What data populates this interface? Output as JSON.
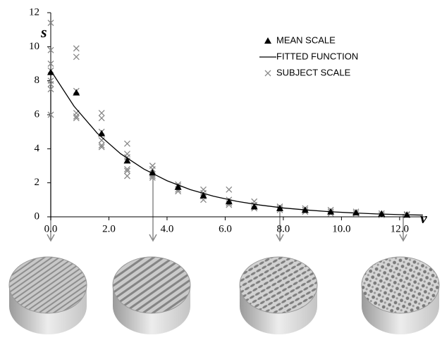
{
  "chart_data": {
    "type": "scatter",
    "x_label": "v",
    "y_label": "s",
    "xlim": [
      0,
      12.9
    ],
    "ylim": [
      0,
      12
    ],
    "xticks": [
      {
        "value": 0,
        "label": "0.0"
      },
      {
        "value": 2,
        "label": "2.0"
      },
      {
        "value": 4,
        "label": "4.0"
      },
      {
        "value": 6,
        "label": "6.0"
      },
      {
        "value": 8,
        "label": "8.0"
      },
      {
        "value": 10,
        "label": "10.0"
      },
      {
        "value": 12,
        "label": "12.0"
      }
    ],
    "yticks": [
      0,
      2,
      4,
      6,
      8,
      10,
      12
    ],
    "grid": false,
    "legend": "top right",
    "series": [
      {
        "name": "MEAN SCALE",
        "type": "scatter",
        "marker": "triangle",
        "color": "#000000",
        "x": [
          0,
          0.88,
          1.75,
          2.63,
          3.5,
          4.38,
          5.25,
          6.13,
          7.0,
          7.88,
          8.75,
          9.63,
          10.5,
          11.38,
          12.25
        ],
        "values": [
          8.5,
          7.3,
          4.9,
          3.3,
          2.6,
          1.75,
          1.25,
          0.9,
          0.6,
          0.5,
          0.4,
          0.3,
          0.25,
          0.18,
          0.12
        ]
      },
      {
        "name": "FITTED FUNCTION",
        "type": "line",
        "color": "#000000",
        "x": [
          0,
          0.8,
          1.6,
          2.4,
          3.2,
          4.0,
          4.8,
          5.6,
          6.4,
          7.2,
          8.0,
          8.8,
          9.6,
          10.4,
          11.2,
          12.0,
          12.8
        ],
        "values": [
          8.6,
          6.5,
          4.91,
          3.71,
          2.81,
          2.12,
          1.6,
          1.21,
          0.91,
          0.69,
          0.52,
          0.4,
          0.3,
          0.23,
          0.17,
          0.13,
          0.1
        ]
      },
      {
        "name": "SUBJECT SCALE",
        "type": "scatter",
        "marker": "x",
        "color": "#888888",
        "x": [
          0,
          0,
          0,
          0,
          0,
          0,
          0,
          0,
          0.88,
          0.88,
          0.88,
          0.88,
          0.88,
          0.88,
          1.75,
          1.75,
          1.75,
          1.75,
          1.75,
          1.75,
          2.63,
          2.63,
          2.63,
          2.63,
          2.63,
          2.63,
          2.63,
          3.5,
          3.5,
          3.5,
          3.5,
          3.5,
          4.38,
          4.38,
          4.38,
          4.38,
          5.25,
          5.25,
          5.25,
          5.25,
          6.13,
          6.13,
          6.13,
          6.13,
          7.0,
          7.0,
          7.0,
          7.88,
          7.88,
          7.88,
          8.75,
          8.75,
          8.75,
          9.63,
          9.63,
          9.63,
          10.5,
          10.5,
          11.38,
          11.38,
          12.25,
          12.25
        ],
        "values": [
          11.4,
          9.8,
          9.0,
          8.6,
          8.0,
          7.8,
          7.5,
          6.0,
          9.9,
          9.4,
          7.4,
          6.1,
          5.9,
          5.8,
          6.1,
          5.8,
          5.0,
          4.5,
          4.2,
          4.1,
          4.3,
          3.7,
          3.5,
          3.3,
          2.8,
          2.7,
          2.4,
          3.0,
          2.8,
          2.5,
          2.4,
          2.3,
          1.9,
          1.8,
          1.6,
          1.5,
          1.6,
          1.4,
          1.2,
          1.0,
          1.6,
          1.0,
          0.8,
          0.7,
          0.9,
          0.7,
          0.5,
          0.6,
          0.5,
          0.4,
          0.5,
          0.4,
          0.3,
          0.4,
          0.3,
          0.2,
          0.3,
          0.2,
          0.2,
          0.1,
          0.15,
          0.1
        ]
      }
    ]
  }
}
